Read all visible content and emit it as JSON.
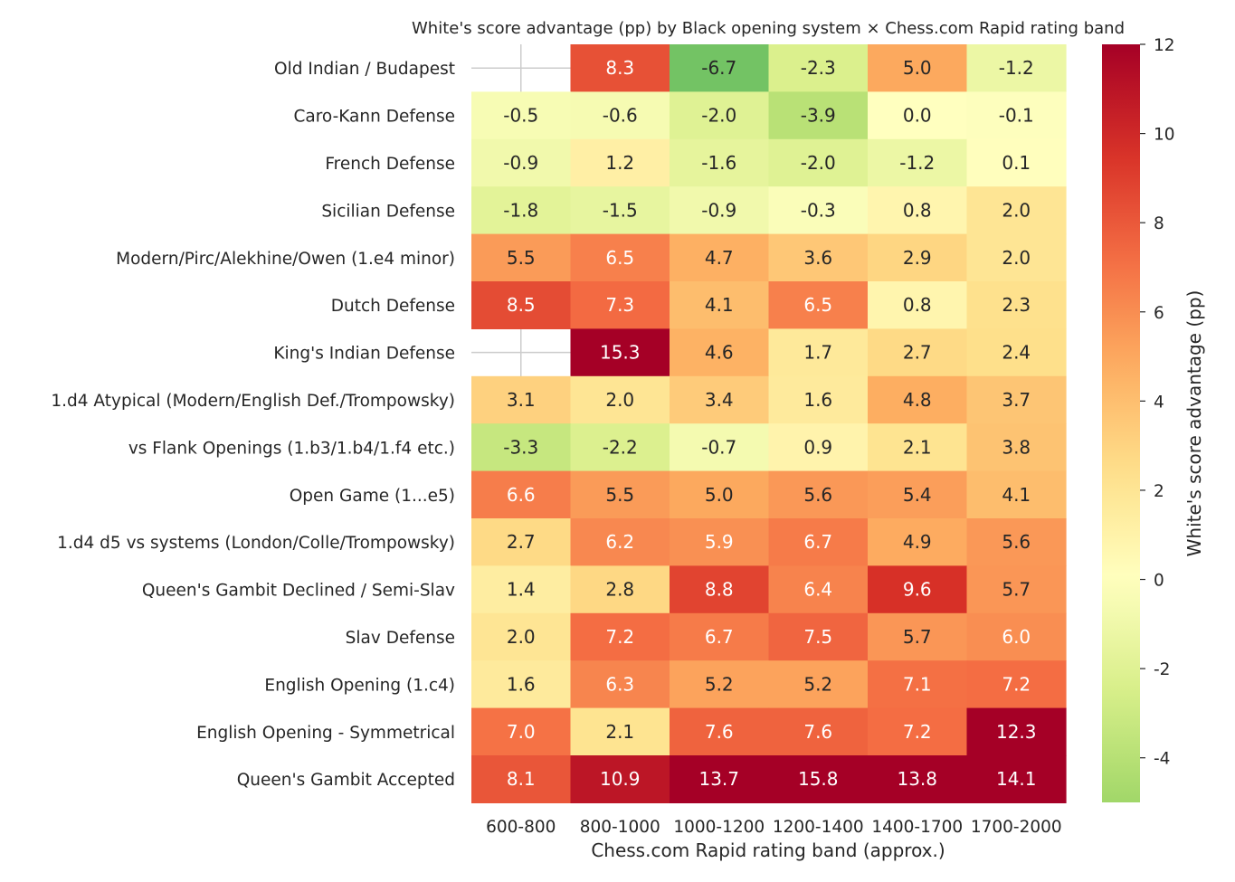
{
  "chart_data": {
    "type": "heatmap",
    "title": "White's score advantage (pp) by Black opening system × Chess.com Rapid rating band",
    "xlabel": "Chess.com Rapid rating band (approx.)",
    "ylabel": "",
    "x_categories": [
      "600-800",
      "800-1000",
      "1000-1200",
      "1200-1400",
      "1400-1700",
      "1700-2000"
    ],
    "y_categories": [
      "Old Indian / Budapest",
      "Caro-Kann Defense",
      "French Defense",
      "Sicilian Defense",
      "Modern/Pirc/Alekhine/Owen (1.e4 minor)",
      "Dutch Defense",
      "King's Indian Defense",
      "1.d4 Atypical (Modern/English Def./Trompowsky)",
      "vs Flank Openings (1.b3/1.b4/1.f4 etc.)",
      "Open Game (1...e5)",
      "1.d4 d5 vs systems (London/Colle/Trompowsky)",
      "Queen's Gambit Declined / Semi-Slav",
      "Slav Defense",
      "English Opening (1.c4)",
      "English Opening - Symmetrical",
      "Queen's Gambit Accepted"
    ],
    "values": [
      [
        null,
        8.3,
        -6.7,
        -2.3,
        5.0,
        -1.2
      ],
      [
        -0.5,
        -0.6,
        -2.0,
        -3.9,
        -0.0,
        -0.1
      ],
      [
        -0.9,
        1.2,
        -1.6,
        -2.0,
        -1.2,
        0.1
      ],
      [
        -1.8,
        -1.5,
        -0.9,
        -0.3,
        0.8,
        2.0
      ],
      [
        5.5,
        6.5,
        4.7,
        3.6,
        2.9,
        2.0
      ],
      [
        8.5,
        7.3,
        4.1,
        6.5,
        0.8,
        2.3
      ],
      [
        null,
        15.3,
        4.6,
        1.7,
        2.7,
        2.4
      ],
      [
        3.1,
        2.0,
        3.4,
        1.6,
        4.8,
        3.7
      ],
      [
        -3.3,
        -2.2,
        -0.7,
        0.9,
        2.1,
        3.8
      ],
      [
        6.6,
        5.5,
        5.0,
        5.6,
        5.4,
        4.1
      ],
      [
        2.7,
        6.2,
        5.9,
        6.7,
        4.9,
        5.6
      ],
      [
        1.4,
        2.8,
        8.8,
        6.4,
        9.6,
        5.7
      ],
      [
        2.0,
        7.2,
        6.7,
        7.5,
        5.7,
        6.0
      ],
      [
        1.6,
        6.3,
        5.2,
        5.2,
        7.1,
        7.2
      ],
      [
        7.0,
        2.1,
        7.6,
        7.6,
        7.2,
        12.3
      ],
      [
        8.1,
        10.9,
        13.7,
        15.8,
        13.8,
        14.1
      ]
    ],
    "color_scale": {
      "name": "RdYlGn_r",
      "vmin": -5,
      "vmax": 12,
      "center": 0,
      "label": "White's score advantage (pp)",
      "ticks": [
        -4,
        -2,
        0,
        2,
        4,
        6,
        8,
        10,
        12
      ]
    },
    "grid": "white lines on missing cells",
    "legend": "colorbar-right"
  }
}
